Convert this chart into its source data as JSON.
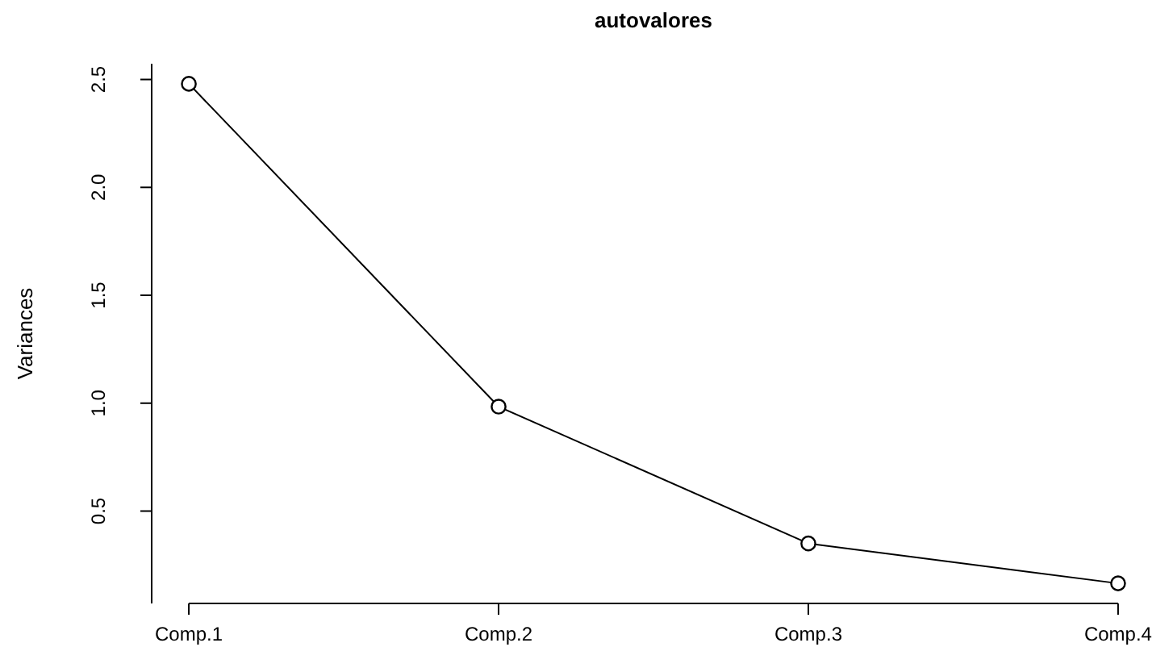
{
  "chart_data": {
    "type": "line",
    "title": "autovalores",
    "ylabel": "Variances",
    "categories": [
      "Comp.1",
      "Comp.2",
      "Comp.3",
      "Comp.4"
    ],
    "series": [
      {
        "color": "#000000",
        "values": [
          2.48,
          0.984,
          0.35,
          0.165
        ]
      }
    ],
    "ylim": [
      0.072,
      2.573
    ],
    "yticks": [
      0.5,
      {
        "value": 1,
        "label": "1.0"
      },
      1.5,
      {
        "value": 2,
        "label": "2.0"
      },
      2.5
    ],
    "marker": "circle",
    "line_style": "solid",
    "grid": false
  }
}
